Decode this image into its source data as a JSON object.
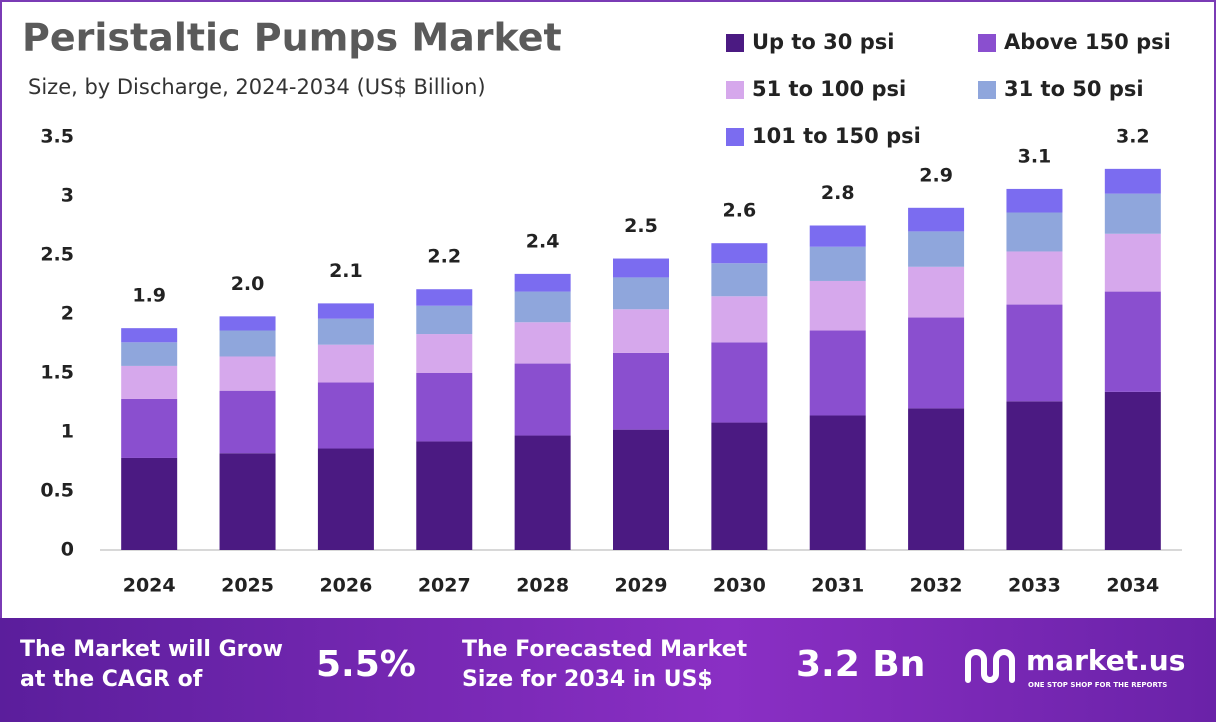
{
  "chart_data": {
    "type": "stacked-bar",
    "title": "Peristaltic Pumps Market",
    "subtitle": "Size, by Discharge, 2024-2034 (US$ Billion)",
    "categories": [
      "2024",
      "2025",
      "2026",
      "2027",
      "2028",
      "2029",
      "2030",
      "2031",
      "2032",
      "2033",
      "2034"
    ],
    "series": [
      {
        "name": "Up to 30 psi",
        "color": "#4b1a82",
        "values": [
          0.78,
          0.82,
          0.86,
          0.92,
          0.97,
          1.02,
          1.08,
          1.14,
          1.2,
          1.26,
          1.34
        ]
      },
      {
        "name": "Above 150 psi",
        "color": "#8a4fcf",
        "values": [
          0.5,
          0.53,
          0.56,
          0.58,
          0.61,
          0.65,
          0.68,
          0.72,
          0.77,
          0.82,
          0.85
        ]
      },
      {
        "name": "51 to 100 psi",
        "color": "#d6a8ec",
        "values": [
          0.28,
          0.29,
          0.32,
          0.33,
          0.35,
          0.37,
          0.39,
          0.42,
          0.43,
          0.45,
          0.49
        ]
      },
      {
        "name": "31 to 50 psi",
        "color": "#8fa6dc",
        "values": [
          0.2,
          0.22,
          0.22,
          0.24,
          0.26,
          0.27,
          0.28,
          0.29,
          0.3,
          0.33,
          0.34
        ]
      },
      {
        "name": "101 to 150 psi",
        "color": "#7b6cf0",
        "values": [
          0.12,
          0.12,
          0.13,
          0.14,
          0.15,
          0.16,
          0.17,
          0.18,
          0.2,
          0.2,
          0.21
        ]
      }
    ],
    "totals": {
      "values": [
        1.9,
        2.0,
        2.1,
        2.2,
        2.4,
        2.5,
        2.6,
        2.8,
        2.9,
        3.1,
        3.2
      ],
      "value_labels": [
        "1.9",
        "2.0",
        "2.1",
        "2.2",
        "2.4",
        "2.5",
        "2.6",
        "2.8",
        "2.9",
        "3.1",
        "3.2"
      ]
    },
    "ylim": [
      0,
      3.5
    ],
    "yticks": [
      0,
      0.5,
      1,
      1.5,
      2,
      2.5,
      3,
      3.5
    ],
    "grid": false,
    "legend": "top-right"
  },
  "footer": {
    "cagr_lines": [
      "The Market will Grow",
      "at the CAGR of"
    ],
    "cagr_value": "5.5%",
    "forecast_lines": [
      "The Forecasted Market",
      "Size for 2034 in US$"
    ],
    "forecast_value": "3.2 Bn",
    "brand": "market.us",
    "tagline": "ONE STOP SHOP FOR THE REPORTS"
  }
}
